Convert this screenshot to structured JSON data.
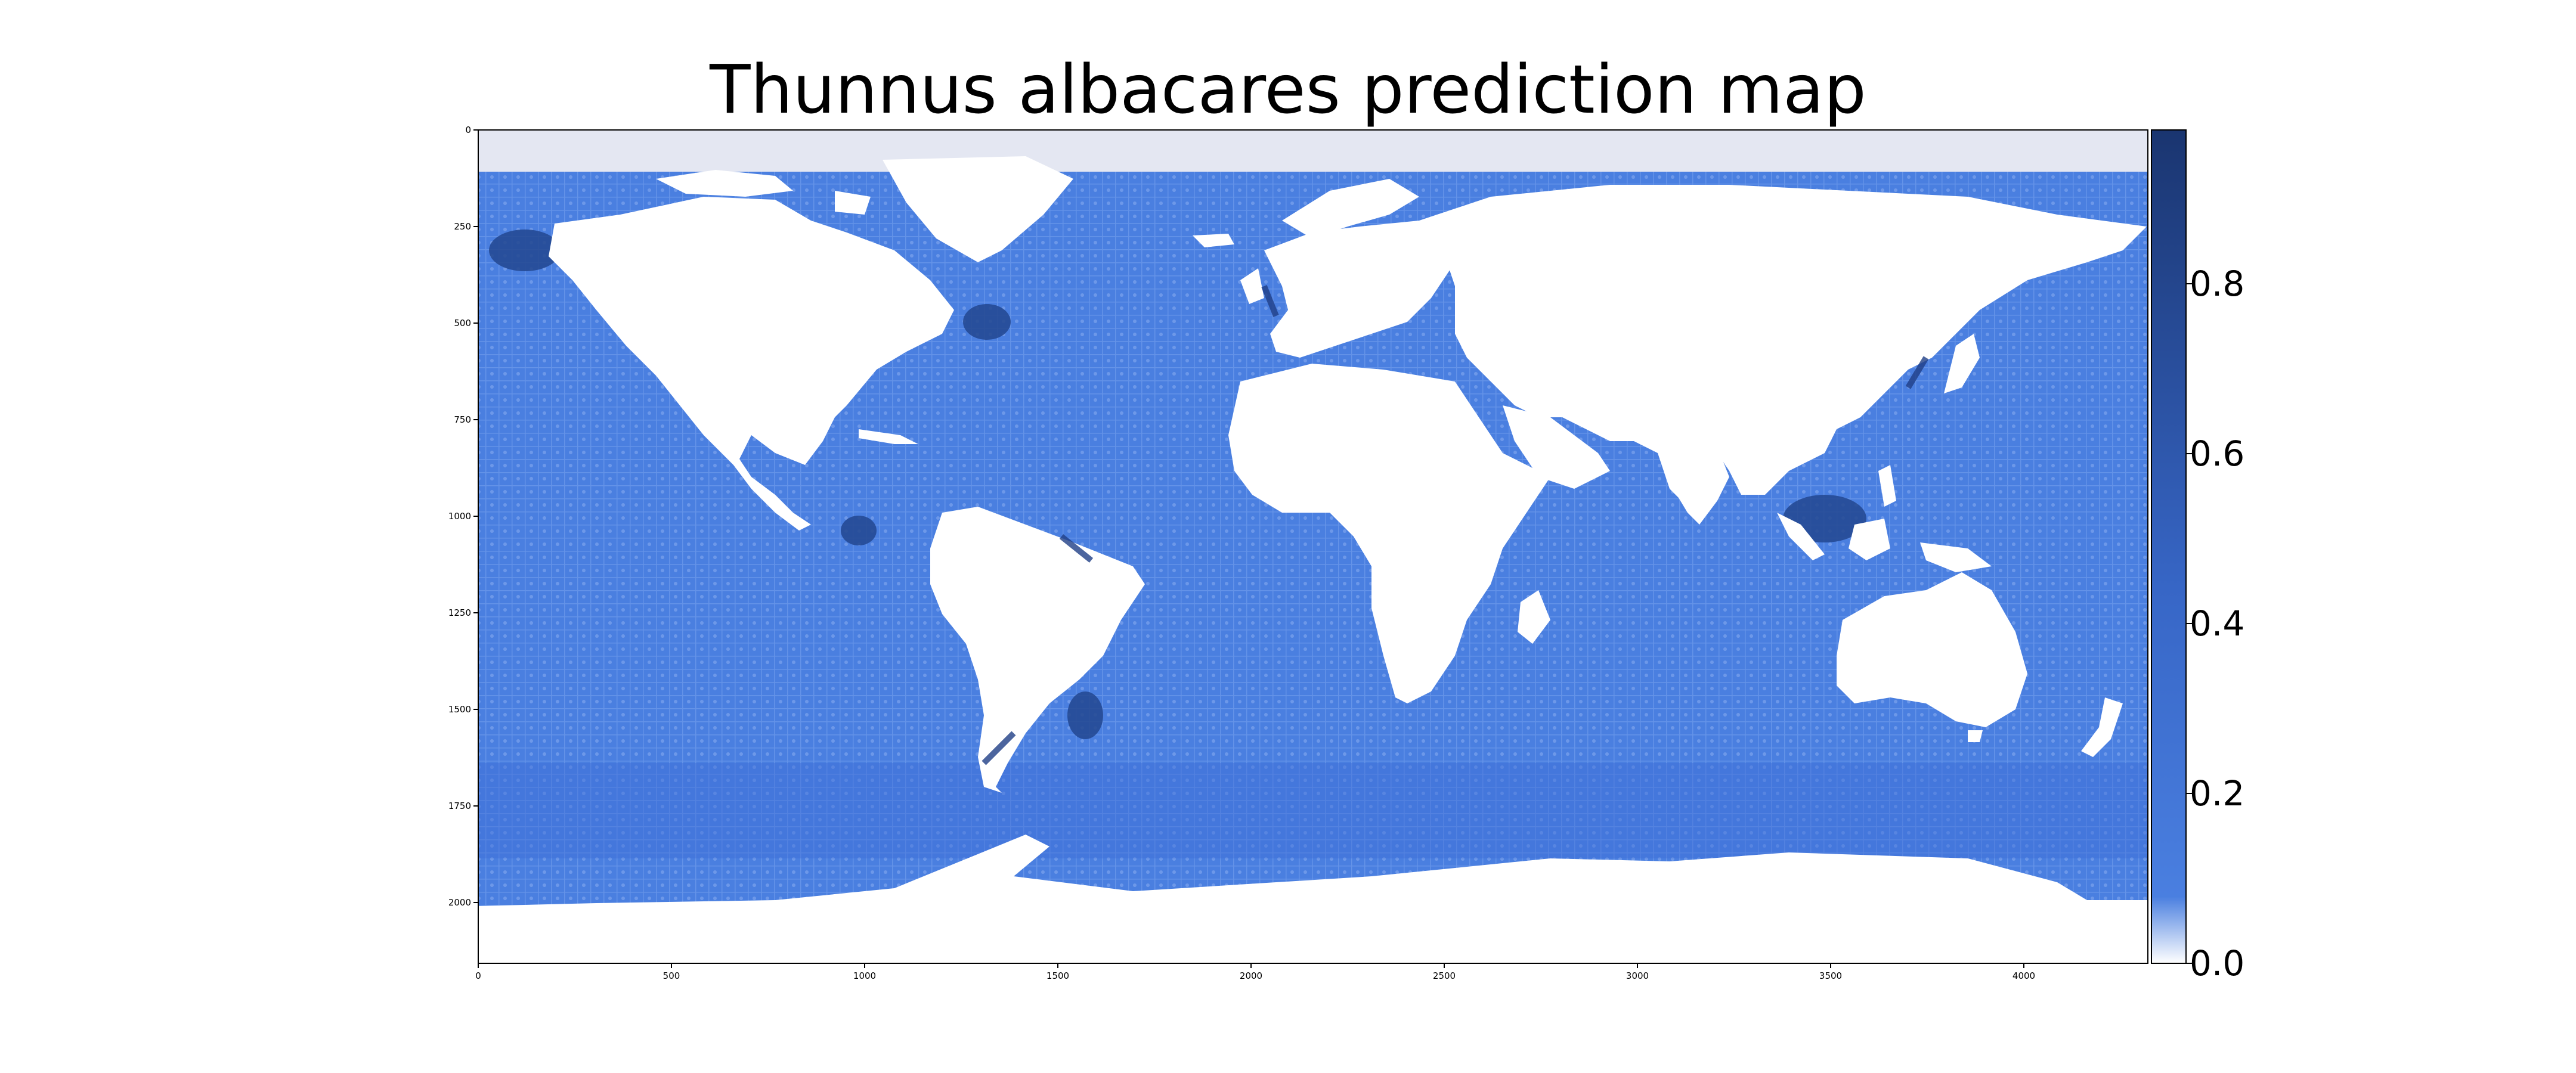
{
  "map": {
    "title": "Thunnus albacares prediction map",
    "x_ticks": [
      "0",
      "500",
      "1000",
      "1500",
      "2000",
      "2500",
      "3000",
      "3500",
      "4000"
    ],
    "y_ticks": [
      "0",
      "250",
      "500",
      "750",
      "1000",
      "1250",
      "1500",
      "1750",
      "2000"
    ],
    "x_range": [
      0,
      4320
    ],
    "y_range": [
      0,
      2160
    ],
    "colorbar": {
      "ticks": [
        "0.0",
        "0.2",
        "0.4",
        "0.6",
        "0.8"
      ],
      "range": [
        0.0,
        0.98
      ],
      "colors": [
        "#ffffff",
        "#3a6fd8",
        "#1b3f7e"
      ]
    },
    "colors": {
      "ocean": "#4a7fe0",
      "ocean_deep": "#3c6fd2",
      "hotspot": "#1f3f86",
      "land": "#ffffff",
      "ice_no_data": "#e4e7f2"
    }
  }
}
